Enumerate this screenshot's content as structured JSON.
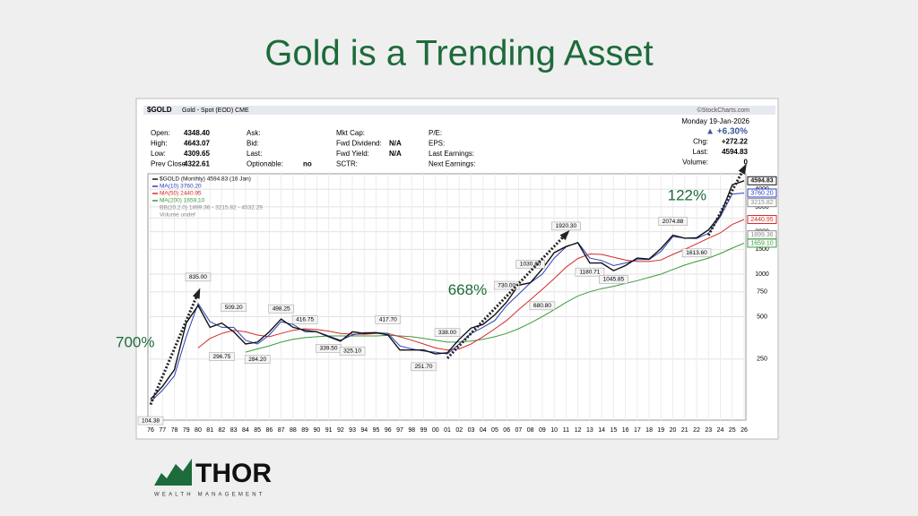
{
  "slide": {
    "title": "Gold is a Trending Asset",
    "logo": {
      "name": "THOR",
      "tagline": "WEALTH MANAGEMENT"
    }
  },
  "header": {
    "symbol": "$GOLD",
    "description": "Gold - Spot (EOD) CME",
    "source": "©StockCharts.com",
    "date": "Monday 19-Jan-2026",
    "columns": [
      [
        [
          "Open:",
          "4348.40"
        ],
        [
          "High:",
          "4643.07"
        ],
        [
          "Low:",
          "4309.65"
        ],
        [
          "Prev Close:",
          "4322.61"
        ]
      ],
      [
        [
          "Ask:"
        ],
        [
          "Bid:"
        ],
        [
          "Last:"
        ],
        [
          "Optionable:",
          "no"
        ]
      ],
      [
        [
          "Mkt Cap:"
        ],
        [
          "Fwd Dividend:",
          "N/A"
        ],
        [
          "Fwd Yield:",
          "N/A"
        ],
        [
          "SCTR:"
        ]
      ],
      [
        [
          "P/E:"
        ],
        [
          "EPS:"
        ],
        [
          "Last Earnings:"
        ],
        [
          "Next Earnings:"
        ]
      ]
    ],
    "quote": [
      [
        "▲ +6.30%"
      ],
      [
        "Chg:",
        "+272.22"
      ],
      [
        "Last:",
        "4594.83"
      ],
      [
        "Volume:",
        "0"
      ]
    ]
  },
  "chart_data": {
    "type": "line",
    "log_scale": true,
    "grid": true,
    "categories": [
      "76",
      "77",
      "78",
      "79",
      "80",
      "81",
      "82",
      "83",
      "84",
      "85",
      "86",
      "87",
      "88",
      "89",
      "90",
      "91",
      "92",
      "93",
      "94",
      "95",
      "96",
      "97",
      "98",
      "99",
      "00",
      "01",
      "02",
      "03",
      "04",
      "05",
      "06",
      "07",
      "08",
      "09",
      "10",
      "11",
      "12",
      "13",
      "14",
      "15",
      "16",
      "17",
      "18",
      "19",
      "20",
      "21",
      "22",
      "23",
      "24",
      "25",
      "26"
    ],
    "series": [
      {
        "name": "$GOLD (Monthly) 4594.83 (16 Jan)",
        "color": "#111111",
        "values": [
          130,
          160,
          210,
          450,
          600,
          420,
          450,
          390,
          320,
          330,
          390,
          480,
          420,
          400,
          390,
          360,
          335,
          390,
          380,
          385,
          370,
          290,
          290,
          290,
          272,
          277,
          345,
          415,
          440,
          515,
          635,
          835,
          870,
          1090,
          1420,
          1570,
          1670,
          1200,
          1200,
          1060,
          1150,
          1300,
          1280,
          1520,
          1890,
          1800,
          1810,
          2060,
          2620,
          4300,
          4594.83
        ]
      },
      {
        "name": "MA(10) 3760.20",
        "color": "#2b3fb8",
        "values": [
          125,
          150,
          190,
          360,
          620,
          460,
          420,
          420,
          340,
          320,
          370,
          460,
          440,
          390,
          390,
          365,
          340,
          370,
          385,
          385,
          380,
          310,
          295,
          285,
          280,
          272,
          320,
          380,
          420,
          470,
          600,
          720,
          870,
          1000,
          1300,
          1560,
          1680,
          1300,
          1250,
          1150,
          1200,
          1270,
          1270,
          1450,
          1850,
          1800,
          1790,
          1950,
          2550,
          3700,
          3760.2
        ]
      },
      {
        "name": "MA(50) 2440.95",
        "color": "#d42a2a",
        "values": [
          null,
          null,
          null,
          null,
          300,
          350,
          380,
          400,
          390,
          370,
          360,
          380,
          400,
          410,
          405,
          395,
          380,
          375,
          375,
          380,
          380,
          360,
          340,
          320,
          300,
          290,
          295,
          320,
          360,
          410,
          470,
          560,
          660,
          780,
          930,
          1120,
          1290,
          1390,
          1380,
          1320,
          1260,
          1230,
          1230,
          1260,
          1380,
          1500,
          1640,
          1800,
          1960,
          2250,
          2440.95
        ]
      },
      {
        "name": "MA(200) 1659.10",
        "color": "#3c9a3c",
        "values": [
          null,
          null,
          null,
          null,
          null,
          null,
          null,
          null,
          280,
          295,
          310,
          330,
          345,
          355,
          360,
          365,
          365,
          365,
          365,
          365,
          368,
          365,
          360,
          350,
          340,
          330,
          330,
          335,
          345,
          360,
          380,
          410,
          450,
          500,
          560,
          630,
          700,
          750,
          790,
          820,
          860,
          900,
          950,
          1000,
          1080,
          1160,
          1230,
          1300,
          1400,
          1530,
          1659.1
        ]
      }
    ],
    "indicator_notes": [
      "BB(20,2.0) 1899.36 - 3215.82 - 4532.29",
      "Volume undef"
    ],
    "ylim": [
      95,
      5000
    ],
    "yticks": [
      250,
      500,
      750,
      1000,
      1500,
      2000,
      2500,
      3000,
      4000
    ],
    "value_tags": [
      {
        "value": 4594.83,
        "label": "4594.83",
        "color": "#111111"
      },
      {
        "value": 3760.2,
        "label": "3760.20",
        "color": "#2b3fb8"
      },
      {
        "value": 3215.82,
        "label": "3215.82",
        "color": "#888888"
      },
      {
        "value": 2440.95,
        "label": "2440.95",
        "color": "#d42a2a"
      },
      {
        "value": 1899.36,
        "label": "1899.36",
        "color": "#888888"
      },
      {
        "value": 1659.1,
        "label": "1659.10",
        "color": "#3c9a3c"
      }
    ],
    "annotations": [
      {
        "category": "76",
        "value": 104.38,
        "label": "104.38"
      },
      {
        "category": "80",
        "value": 835,
        "label": "835.00"
      },
      {
        "category": "82",
        "value": 296.75,
        "label": "296.75"
      },
      {
        "category": "83",
        "value": 509.2,
        "label": "509.20"
      },
      {
        "category": "85",
        "value": 284.2,
        "label": "284.20"
      },
      {
        "category": "87",
        "value": 498.25,
        "label": "498.25"
      },
      {
        "category": "89",
        "value": 416.75,
        "label": "416.75"
      },
      {
        "category": "91",
        "value": 339.5,
        "label": "339.50"
      },
      {
        "category": "93",
        "value": 325.1,
        "label": "325.10"
      },
      {
        "category": "96",
        "value": 417.7,
        "label": "417.70"
      },
      {
        "category": "99",
        "value": 251.7,
        "label": "251.70"
      },
      {
        "category": "01",
        "value": 338,
        "label": "338.00"
      },
      {
        "category": "06",
        "value": 730,
        "label": "730.00"
      },
      {
        "category": "08",
        "value": 1030.8,
        "label": "1030.80"
      },
      {
        "category": "09",
        "value": 680.8,
        "label": "680.80"
      },
      {
        "category": "11",
        "value": 1920.3,
        "label": "1920.30"
      },
      {
        "category": "13",
        "value": 1180.71,
        "label": "1180.71"
      },
      {
        "category": "15",
        "value": 1045.85,
        "label": "1045.85"
      },
      {
        "category": "20",
        "value": 2074.88,
        "label": "2074.88"
      },
      {
        "category": "22",
        "value": 1613.6,
        "label": "1613.60"
      }
    ],
    "trends": [
      {
        "from": "76",
        "to": "80",
        "label": "700%"
      },
      {
        "from": "01",
        "to": "11",
        "label": "668%"
      },
      {
        "from": "23",
        "to": "26",
        "label": "122%"
      }
    ]
  }
}
